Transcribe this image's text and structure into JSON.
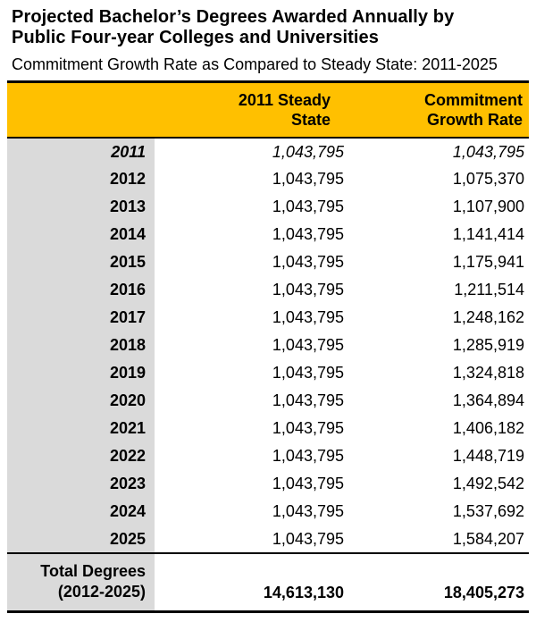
{
  "title": {
    "line1": "Projected Bachelor’s Degrees Awarded Annually by",
    "line2": "Public Four-year Colleges and Universities"
  },
  "subtitle": "Commitment Growth Rate as Compared to Steady State: 2011-2025",
  "colors": {
    "header_gold": "#FFC000",
    "year_column_gray": "#DADADA",
    "rule_black": "#000000"
  },
  "chart_data": {
    "type": "table",
    "title": "Projected Bachelor’s Degrees Awarded Annually by Public Four-year Colleges and Universities",
    "subtitle": "Commitment Growth Rate as Compared to Steady State: 2011-2025",
    "column_headers": {
      "year": "",
      "steady": "2011 Steady\nState",
      "commitment": "Commitment\nGrowth Rate"
    },
    "rows": [
      {
        "year": "2011",
        "steady": "1,043,795",
        "commitment": "1,043,795"
      },
      {
        "year": "2012",
        "steady": "1,043,795",
        "commitment": "1,075,370"
      },
      {
        "year": "2013",
        "steady": "1,043,795",
        "commitment": "1,107,900"
      },
      {
        "year": "2014",
        "steady": "1,043,795",
        "commitment": "1,141,414"
      },
      {
        "year": "2015",
        "steady": "1,043,795",
        "commitment": "1,175,941"
      },
      {
        "year": "2016",
        "steady": "1,043,795",
        "commitment": "1,211,514"
      },
      {
        "year": "2017",
        "steady": "1,043,795",
        "commitment": "1,248,162"
      },
      {
        "year": "2018",
        "steady": "1,043,795",
        "commitment": "1,285,919"
      },
      {
        "year": "2019",
        "steady": "1,043,795",
        "commitment": "1,324,818"
      },
      {
        "year": "2020",
        "steady": "1,043,795",
        "commitment": "1,364,894"
      },
      {
        "year": "2021",
        "steady": "1,043,795",
        "commitment": "1,406,182"
      },
      {
        "year": "2022",
        "steady": "1,043,795",
        "commitment": "1,448,719"
      },
      {
        "year": "2023",
        "steady": "1,043,795",
        "commitment": "1,492,542"
      },
      {
        "year": "2024",
        "steady": "1,043,795",
        "commitment": "1,537,692"
      },
      {
        "year": "2025",
        "steady": "1,043,795",
        "commitment": "1,584,207"
      }
    ],
    "total_row": {
      "label": "Total Degrees\n(2012-2025)",
      "steady": "14,613,130",
      "commitment": "18,405,273"
    }
  }
}
